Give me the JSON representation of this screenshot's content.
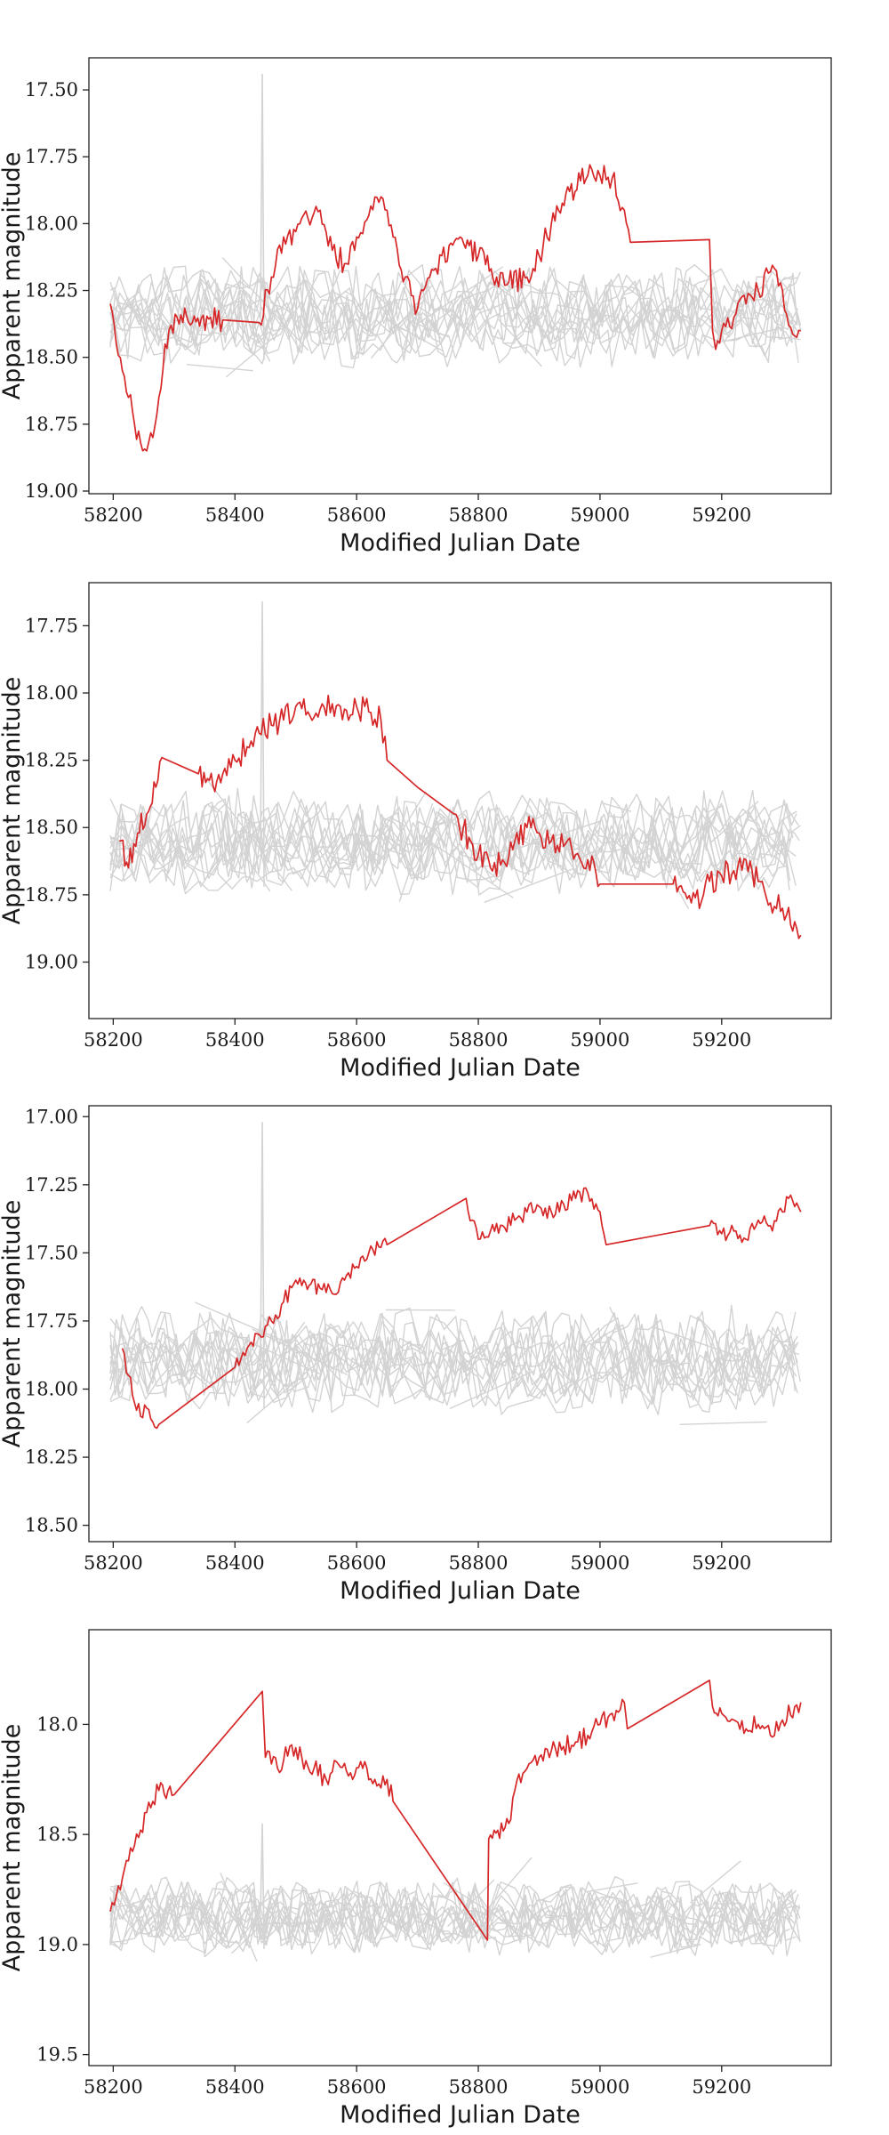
{
  "colors": {
    "comparison": "#d3d3d3",
    "highlight": "#d62728"
  },
  "chart_data": [
    {
      "type": "line",
      "xlabel": "Modified Julian Date",
      "ylabel": "Apparent magnitude",
      "y_inverted": true,
      "xlim": [
        58160,
        59380
      ],
      "ylim": [
        19.01,
        17.38
      ],
      "x_ticks": [
        "58200",
        "58400",
        "58600",
        "58800",
        "59000",
        "59200"
      ],
      "y_ticks": [
        "17.50",
        "17.75",
        "18.00",
        "18.25",
        "18.50",
        "18.75",
        "19.00"
      ],
      "grey_band": {
        "center": 18.35,
        "spread": 0.16,
        "spike_x": 58445,
        "spike_top": 17.44
      },
      "series": [
        {
          "role": "highlight",
          "noise": 0.045,
          "x": [
            58195,
            58205,
            58215,
            58225,
            58235,
            58245,
            58255,
            58265,
            58275,
            58285,
            58295,
            58305,
            58330,
            58360,
            58380,
            58440,
            58460,
            58480,
            58500,
            58520,
            58540,
            58560,
            58580,
            58600,
            58620,
            58640,
            58650,
            58660,
            58680,
            58700,
            58720,
            58740,
            58770,
            58800,
            58830,
            58850,
            58880,
            58900,
            58920,
            58950,
            58980,
            59000,
            59020,
            59040,
            59050,
            59180,
            59185,
            59190,
            59200,
            59220,
            59240,
            59260,
            59280,
            59300,
            59310,
            59320,
            59330
          ],
          "y": [
            18.3,
            18.45,
            18.55,
            18.65,
            18.75,
            18.82,
            18.85,
            18.8,
            18.65,
            18.45,
            18.38,
            18.35,
            18.37,
            18.35,
            18.36,
            18.37,
            18.2,
            18.05,
            18.03,
            17.98,
            17.95,
            18.1,
            18.15,
            18.05,
            17.97,
            17.9,
            17.95,
            18.05,
            18.2,
            18.32,
            18.2,
            18.12,
            18.05,
            18.12,
            18.2,
            18.22,
            18.2,
            18.12,
            18.0,
            17.88,
            17.82,
            17.82,
            17.83,
            17.95,
            18.07,
            18.06,
            18.4,
            18.47,
            18.4,
            18.35,
            18.3,
            18.25,
            18.18,
            18.25,
            18.38,
            18.42,
            18.4
          ]
        }
      ]
    },
    {
      "type": "line",
      "xlabel": "Modified Julian Date",
      "ylabel": "Apparent magnitude",
      "y_inverted": true,
      "xlim": [
        58160,
        59380
      ],
      "ylim": [
        19.21,
        17.59
      ],
      "x_ticks": [
        "58200",
        "58400",
        "58600",
        "58800",
        "59000",
        "59200"
      ],
      "y_ticks": [
        "17.75",
        "18.00",
        "18.25",
        "18.50",
        "18.75",
        "19.00"
      ],
      "grey_band": {
        "center": 18.55,
        "spread": 0.17,
        "spike_x": 58445,
        "spike_top": 17.66
      },
      "series": [
        {
          "role": "highlight",
          "noise": 0.05,
          "x": [
            58210,
            58225,
            58240,
            58255,
            58270,
            58280,
            58340,
            58370,
            58380,
            58400,
            58420,
            58440,
            58460,
            58480,
            58500,
            58520,
            58540,
            58560,
            58580,
            58600,
            58620,
            58640,
            58650,
            58700,
            58760,
            58800,
            58820,
            58840,
            58860,
            58880,
            58900,
            58920,
            58940,
            58960,
            58980,
            59000,
            59120,
            59130,
            59150,
            59170,
            59180,
            59200,
            59220,
            59240,
            59260,
            59280,
            59300,
            59320,
            59330
          ],
          "y": [
            18.55,
            18.65,
            18.52,
            18.45,
            18.35,
            18.24,
            18.3,
            18.33,
            18.3,
            18.25,
            18.2,
            18.15,
            18.12,
            18.1,
            18.05,
            18.07,
            18.06,
            18.04,
            18.06,
            18.05,
            18.07,
            18.1,
            18.25,
            18.35,
            18.45,
            18.6,
            18.65,
            18.62,
            18.55,
            18.5,
            18.52,
            18.55,
            18.57,
            18.6,
            18.62,
            18.71,
            18.71,
            18.72,
            18.78,
            18.75,
            18.7,
            18.68,
            18.66,
            18.62,
            18.7,
            18.78,
            18.8,
            18.85,
            18.9
          ]
        }
      ]
    },
    {
      "type": "line",
      "xlabel": "Modified Julian Date",
      "ylabel": "Apparent magnitude",
      "y_inverted": true,
      "xlim": [
        58160,
        59380
      ],
      "ylim": [
        18.56,
        16.96
      ],
      "x_ticks": [
        "58200",
        "58400",
        "58600",
        "58800",
        "59000",
        "59200"
      ],
      "y_ticks": [
        "17.00",
        "17.25",
        "17.50",
        "17.75",
        "18.00",
        "18.25",
        "18.50"
      ],
      "grey_band": {
        "center": 17.9,
        "spread": 0.17,
        "spike_x": 58445,
        "spike_top": 17.02
      },
      "series": [
        {
          "role": "highlight",
          "noise": 0.03,
          "x": [
            58215,
            58225,
            58235,
            58245,
            58255,
            58275,
            58400,
            58420,
            58440,
            58460,
            58480,
            58500,
            58510,
            58540,
            58560,
            58580,
            58600,
            58620,
            58640,
            58650,
            58780,
            58790,
            58800,
            58820,
            58840,
            58860,
            58880,
            58900,
            58920,
            58940,
            58960,
            58980,
            59000,
            59010,
            59180,
            59200,
            59220,
            59240,
            59260,
            59280,
            59300,
            59310,
            59320,
            59330
          ],
          "y": [
            17.85,
            17.95,
            18.05,
            18.1,
            18.07,
            18.13,
            17.92,
            17.85,
            17.8,
            17.75,
            17.68,
            17.6,
            17.62,
            17.63,
            17.65,
            17.6,
            17.55,
            17.5,
            17.48,
            17.47,
            17.3,
            17.38,
            17.45,
            17.42,
            17.4,
            17.38,
            17.35,
            17.33,
            17.35,
            17.32,
            17.3,
            17.28,
            17.35,
            17.47,
            17.4,
            17.43,
            17.42,
            17.45,
            17.38,
            17.4,
            17.35,
            17.3,
            17.33,
            17.35
          ]
        }
      ]
    },
    {
      "type": "line",
      "xlabel": "Modified Julian Date",
      "ylabel": "Apparent magnitude",
      "y_inverted": true,
      "xlim": [
        58160,
        59380
      ],
      "ylim": [
        19.55,
        17.57
      ],
      "x_ticks": [
        "58200",
        "58400",
        "58600",
        "58800",
        "59000",
        "59200"
      ],
      "y_ticks": [
        "18.0",
        "18.5",
        "19.0",
        "19.5"
      ],
      "grey_band": {
        "center": 18.85,
        "spread": 0.17,
        "spike_x": 58445,
        "spike_top": 18.45
      },
      "series": [
        {
          "role": "highlight",
          "noise": 0.045,
          "x": [
            58195,
            58205,
            58215,
            58225,
            58235,
            58245,
            58255,
            58265,
            58275,
            58290,
            58300,
            58445,
            58450,
            58470,
            58490,
            58510,
            58530,
            58550,
            58570,
            58590,
            58610,
            58630,
            58650,
            58660,
            58815,
            58817,
            58850,
            58860,
            58880,
            58900,
            58920,
            58940,
            58960,
            58980,
            59000,
            59020,
            59040,
            59045,
            59180,
            59185,
            59200,
            59220,
            59240,
            59260,
            59280,
            59300,
            59320,
            59330
          ],
          "y": [
            18.85,
            18.78,
            18.7,
            18.62,
            18.55,
            18.48,
            18.4,
            18.35,
            18.3,
            18.3,
            18.32,
            17.85,
            18.15,
            18.2,
            18.1,
            18.15,
            18.2,
            18.25,
            18.18,
            18.22,
            18.2,
            18.25,
            18.25,
            18.35,
            18.98,
            18.52,
            18.45,
            18.3,
            18.2,
            18.15,
            18.12,
            18.1,
            18.08,
            18.05,
            18.0,
            17.95,
            17.9,
            18.02,
            17.8,
            17.92,
            17.95,
            17.98,
            18.02,
            18.0,
            18.05,
            17.98,
            17.92,
            17.9
          ]
        }
      ]
    }
  ]
}
